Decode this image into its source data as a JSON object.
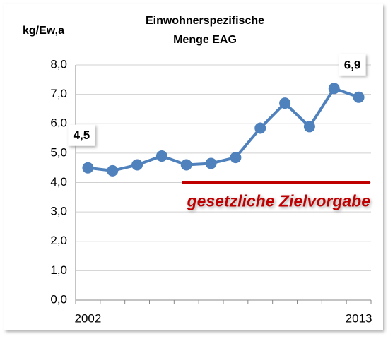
{
  "chart_data": {
    "type": "line",
    "title": [
      "Einwohnerspezifische",
      "Menge EAG"
    ],
    "y_label": "kg/Ew,a",
    "categories": [
      "2002",
      null,
      null,
      null,
      null,
      null,
      null,
      null,
      null,
      null,
      null,
      "2013"
    ],
    "series": [
      {
        "name": "Menge EAG",
        "color": "#4f81bd",
        "values": [
          4.5,
          4.4,
          4.6,
          4.9,
          4.6,
          4.65,
          4.85,
          5.85,
          6.7,
          5.9,
          7.2,
          6.9
        ],
        "value_labels": [
          "4,5",
          null,
          null,
          null,
          null,
          null,
          null,
          null,
          null,
          null,
          null,
          "6,9"
        ]
      }
    ],
    "target": {
      "value": 4.0,
      "label": "gesetzliche Zielvorgabe",
      "color": "#c00000"
    },
    "ylim": [
      0,
      8
    ],
    "yticks": [
      {
        "value": 0,
        "label": "0,0"
      },
      {
        "value": 1,
        "label": "1,0"
      },
      {
        "value": 2,
        "label": "2,0"
      },
      {
        "value": 3,
        "label": "3,0"
      },
      {
        "value": 4,
        "label": "4,0"
      },
      {
        "value": 5,
        "label": "5,0"
      },
      {
        "value": 6,
        "label": "6,0"
      },
      {
        "value": 7,
        "label": "7,0"
      },
      {
        "value": 8,
        "label": "8,0"
      }
    ],
    "grid": true
  }
}
